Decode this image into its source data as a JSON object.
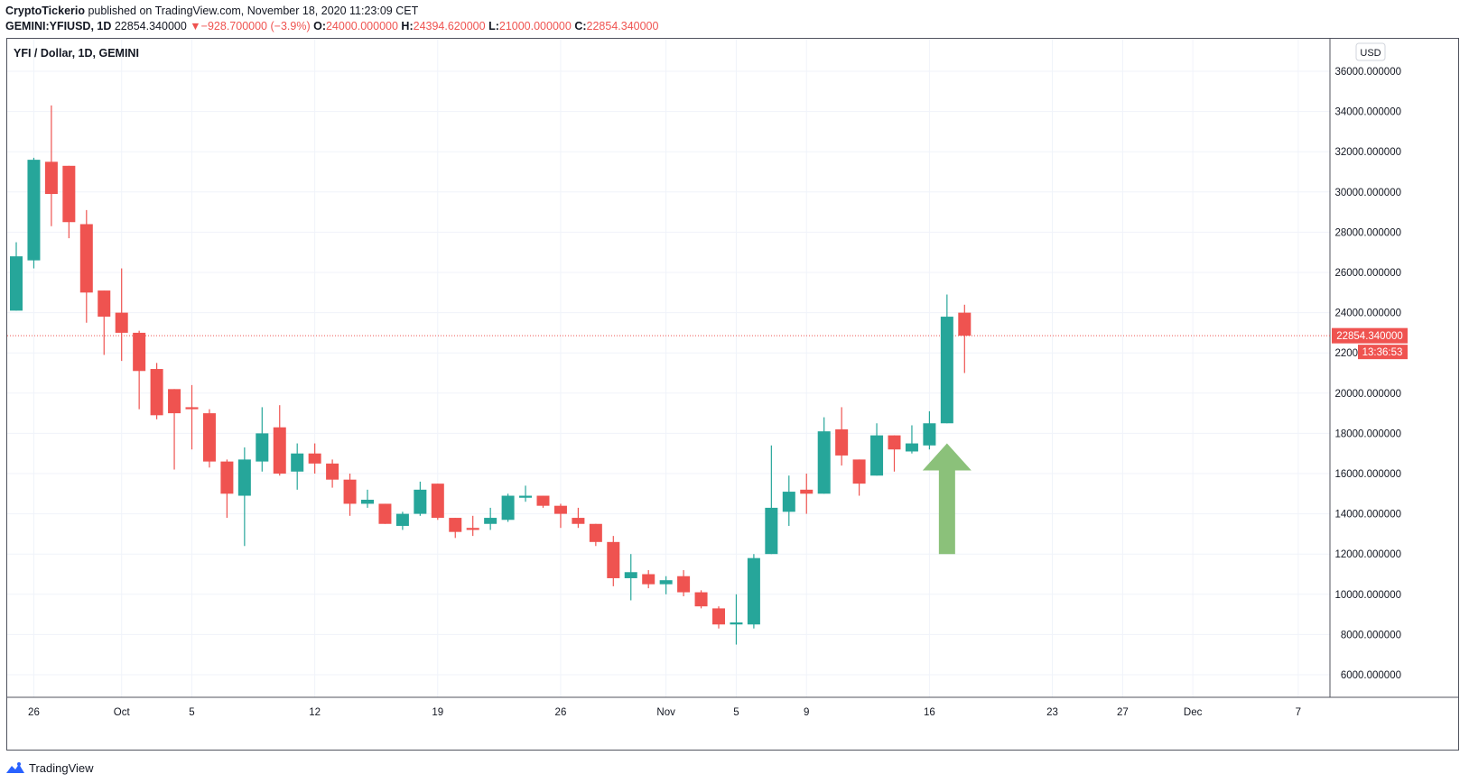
{
  "header": {
    "author": "CryptoTickerio",
    "published_text": "published on TradingView.com, November 18, 2020 11:23:09 CET",
    "symbol": "GEMINI:YFIUSD, 1D",
    "last_price": "22854.340000",
    "change": "−928.700000 (−3.9%)",
    "open_label": "O:",
    "open_value": "24000.000000",
    "high_label": "H:",
    "high_value": "24394.620000",
    "low_label": "L:",
    "low_value": "21000.000000",
    "close_label": "C:",
    "close_value": "22854.340000",
    "down_marker": "▼"
  },
  "chart": {
    "legend_title": "YFI / Dollar, 1D, GEMINI",
    "currency_button": "USD",
    "price_tag": "22854.340000",
    "countdown_tag": "13:36:53"
  },
  "colors": {
    "up": "#26a69a",
    "down": "#ef5350",
    "arrow": "#8bc17a",
    "grid": "#f0f3fa",
    "axis_text": "#131722"
  },
  "footer": {
    "brand": "TradingView",
    "logo_icon": "tradingview-logo-icon"
  },
  "chart_data": {
    "type": "candlestick",
    "ylim": [
      5000,
      37000
    ],
    "y_ticks": [
      6000,
      8000,
      10000,
      12000,
      14000,
      16000,
      18000,
      20000,
      22000,
      24000,
      26000,
      28000,
      30000,
      32000,
      34000,
      36000
    ],
    "y_tick_labels": [
      "6000.000000",
      "8000.000000",
      "10000.000000",
      "12000.000000",
      "14000.000000",
      "16000.000000",
      "18000.000000",
      "20000.000000",
      "22000.000000",
      "24000.000000",
      "26000.000000",
      "28000.000000",
      "30000.000000",
      "32000.000000",
      "34000.000000",
      "36000.000000"
    ],
    "x_ticks": [
      {
        "label": "26",
        "date": "2020-09-26"
      },
      {
        "label": "Oct",
        "date": "2020-10-01"
      },
      {
        "label": "5",
        "date": "2020-10-05"
      },
      {
        "label": "12",
        "date": "2020-10-12"
      },
      {
        "label": "19",
        "date": "2020-10-19"
      },
      {
        "label": "26",
        "date": "2020-10-26"
      },
      {
        "label": "Nov",
        "date": "2020-11-01"
      },
      {
        "label": "5",
        "date": "2020-11-05"
      },
      {
        "label": "9",
        "date": "2020-11-09"
      },
      {
        "label": "16",
        "date": "2020-11-16"
      },
      {
        "label": "23",
        "date": "2020-11-23"
      },
      {
        "label": "27",
        "date": "2020-11-27"
      },
      {
        "label": "Dec",
        "date": "2020-12-01"
      },
      {
        "label": "7",
        "date": "2020-12-07"
      }
    ],
    "first_date": "2020-09-25",
    "last_price_line": 22854.34,
    "candles": [
      {
        "date": "2020-09-25",
        "o": 24100,
        "h": 27500,
        "l": 24100,
        "c": 26800
      },
      {
        "date": "2020-09-26",
        "o": 26600,
        "h": 31700,
        "l": 26200,
        "c": 31600
      },
      {
        "date": "2020-09-27",
        "o": 31500,
        "h": 34300,
        "l": 28300,
        "c": 29900
      },
      {
        "date": "2020-09-28",
        "o": 31300,
        "h": 31300,
        "l": 27700,
        "c": 28500
      },
      {
        "date": "2020-09-29",
        "o": 28400,
        "h": 29100,
        "l": 23500,
        "c": 25000
      },
      {
        "date": "2020-09-30",
        "o": 25100,
        "h": 25100,
        "l": 21900,
        "c": 23800
      },
      {
        "date": "2020-10-01",
        "o": 24000,
        "h": 26200,
        "l": 21600,
        "c": 23000
      },
      {
        "date": "2020-10-02",
        "o": 23000,
        "h": 23100,
        "l": 19200,
        "c": 21100
      },
      {
        "date": "2020-10-03",
        "o": 21200,
        "h": 21500,
        "l": 18700,
        "c": 18900
      },
      {
        "date": "2020-10-04",
        "o": 20200,
        "h": 20200,
        "l": 16200,
        "c": 19000
      },
      {
        "date": "2020-10-05",
        "o": 19300,
        "h": 20400,
        "l": 17200,
        "c": 19200
      },
      {
        "date": "2020-10-06",
        "o": 19000,
        "h": 19200,
        "l": 16300,
        "c": 16600
      },
      {
        "date": "2020-10-07",
        "o": 16600,
        "h": 16700,
        "l": 13800,
        "c": 15000
      },
      {
        "date": "2020-10-08",
        "o": 14900,
        "h": 17300,
        "l": 12400,
        "c": 16700
      },
      {
        "date": "2020-10-09",
        "o": 16600,
        "h": 19300,
        "l": 16100,
        "c": 18000
      },
      {
        "date": "2020-10-10",
        "o": 18300,
        "h": 19400,
        "l": 15900,
        "c": 16000
      },
      {
        "date": "2020-10-11",
        "o": 16100,
        "h": 17500,
        "l": 15200,
        "c": 17000
      },
      {
        "date": "2020-10-12",
        "o": 17000,
        "h": 17500,
        "l": 16000,
        "c": 16500
      },
      {
        "date": "2020-10-13",
        "o": 16500,
        "h": 16700,
        "l": 15300,
        "c": 15700
      },
      {
        "date": "2020-10-14",
        "o": 15700,
        "h": 16000,
        "l": 13900,
        "c": 14500
      },
      {
        "date": "2020-10-15",
        "o": 14500,
        "h": 15200,
        "l": 14300,
        "c": 14700
      },
      {
        "date": "2020-10-16",
        "o": 14500,
        "h": 14500,
        "l": 13500,
        "c": 13500
      },
      {
        "date": "2020-10-17",
        "o": 13400,
        "h": 14100,
        "l": 13200,
        "c": 14000
      },
      {
        "date": "2020-10-18",
        "o": 14000,
        "h": 15600,
        "l": 13900,
        "c": 15200
      },
      {
        "date": "2020-10-19",
        "o": 15500,
        "h": 15500,
        "l": 13700,
        "c": 13800
      },
      {
        "date": "2020-10-20",
        "o": 13800,
        "h": 13800,
        "l": 12800,
        "c": 13100
      },
      {
        "date": "2020-10-21",
        "o": 13300,
        "h": 13900,
        "l": 12900,
        "c": 13200
      },
      {
        "date": "2020-10-22",
        "o": 13500,
        "h": 14300,
        "l": 13200,
        "c": 13800
      },
      {
        "date": "2020-10-23",
        "o": 13700,
        "h": 15000,
        "l": 13600,
        "c": 14900
      },
      {
        "date": "2020-10-24",
        "o": 14800,
        "h": 15400,
        "l": 14600,
        "c": 14900
      },
      {
        "date": "2020-10-25",
        "o": 14900,
        "h": 14900,
        "l": 14300,
        "c": 14400
      },
      {
        "date": "2020-10-26",
        "o": 14400,
        "h": 14500,
        "l": 13300,
        "c": 14000
      },
      {
        "date": "2020-10-27",
        "o": 13800,
        "h": 14300,
        "l": 13300,
        "c": 13500
      },
      {
        "date": "2020-10-28",
        "o": 13500,
        "h": 13500,
        "l": 12400,
        "c": 12600
      },
      {
        "date": "2020-10-29",
        "o": 12600,
        "h": 12900,
        "l": 10400,
        "c": 10800
      },
      {
        "date": "2020-10-30",
        "o": 10800,
        "h": 12000,
        "l": 9700,
        "c": 11100
      },
      {
        "date": "2020-10-31",
        "o": 11000,
        "h": 11200,
        "l": 10300,
        "c": 10500
      },
      {
        "date": "2020-11-01",
        "o": 10500,
        "h": 10900,
        "l": 10000,
        "c": 10700
      },
      {
        "date": "2020-11-02",
        "o": 10900,
        "h": 11200,
        "l": 9900,
        "c": 10100
      },
      {
        "date": "2020-11-03",
        "o": 10100,
        "h": 10200,
        "l": 9300,
        "c": 9400
      },
      {
        "date": "2020-11-04",
        "o": 9300,
        "h": 9400,
        "l": 8300,
        "c": 8500
      },
      {
        "date": "2020-11-05",
        "o": 8500,
        "h": 10000,
        "l": 7500,
        "c": 8600
      },
      {
        "date": "2020-11-06",
        "o": 8500,
        "h": 12000,
        "l": 8300,
        "c": 11800
      },
      {
        "date": "2020-11-07",
        "o": 12000,
        "h": 17400,
        "l": 12000,
        "c": 14300
      },
      {
        "date": "2020-11-08",
        "o": 14100,
        "h": 15900,
        "l": 13400,
        "c": 15100
      },
      {
        "date": "2020-11-09",
        "o": 15200,
        "h": 16000,
        "l": 14000,
        "c": 15000
      },
      {
        "date": "2020-11-10",
        "o": 15000,
        "h": 18800,
        "l": 15000,
        "c": 18100
      },
      {
        "date": "2020-11-11",
        "o": 18200,
        "h": 19300,
        "l": 16400,
        "c": 16900
      },
      {
        "date": "2020-11-12",
        "o": 16700,
        "h": 16700,
        "l": 14900,
        "c": 15500
      },
      {
        "date": "2020-11-13",
        "o": 15900,
        "h": 18500,
        "l": 15900,
        "c": 17900
      },
      {
        "date": "2020-11-14",
        "o": 17900,
        "h": 17900,
        "l": 16100,
        "c": 17200
      },
      {
        "date": "2020-11-15",
        "o": 17100,
        "h": 18400,
        "l": 17000,
        "c": 17500
      },
      {
        "date": "2020-11-16",
        "o": 17400,
        "h": 19100,
        "l": 17200,
        "c": 18500
      },
      {
        "date": "2020-11-17",
        "o": 18500,
        "h": 24900,
        "l": 18500,
        "c": 23800
      },
      {
        "date": "2020-11-18",
        "o": 24000,
        "h": 24394.62,
        "l": 21000,
        "c": 22854.34
      }
    ],
    "annotation": {
      "type": "arrow-up",
      "from_date": "2020-11-17",
      "from_price": 12000,
      "to_price": 17500
    }
  }
}
